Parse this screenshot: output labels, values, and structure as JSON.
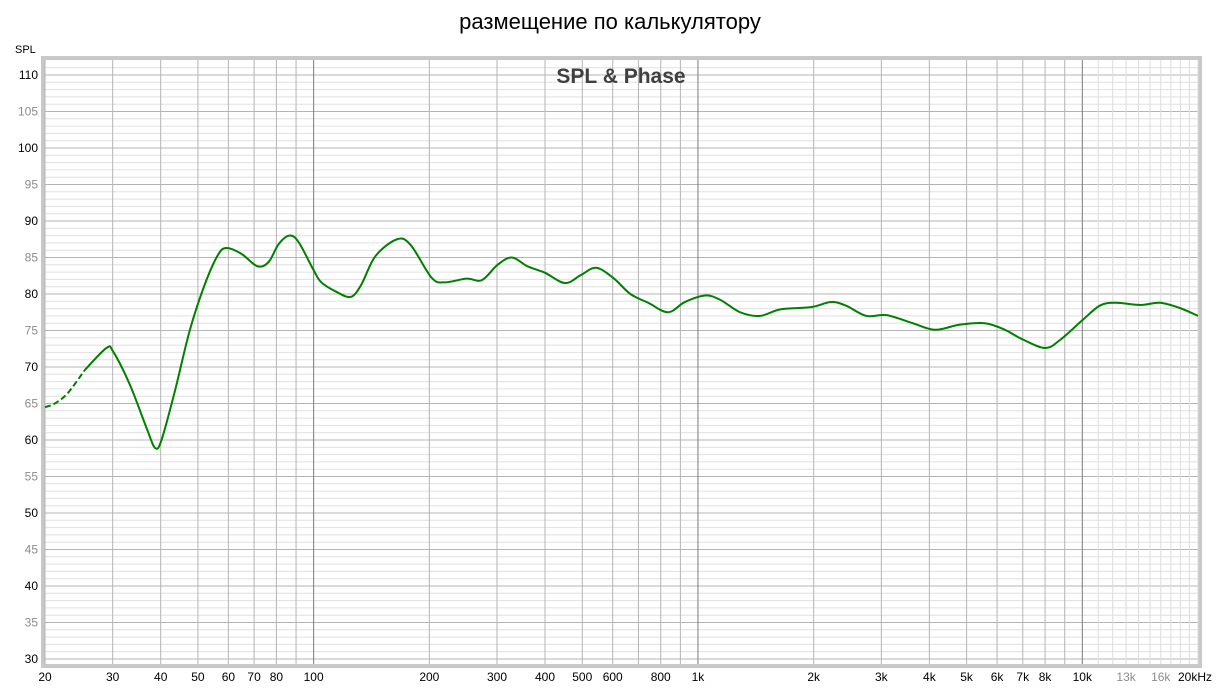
{
  "title": "размещение по калькулятору",
  "chart_data": {
    "type": "line",
    "title": "SPL & Phase",
    "ylabel": "SPL",
    "xlabel": "",
    "xscale": "log",
    "xlim": [
      20,
      20000
    ],
    "ylim": [
      29.3,
      112
    ],
    "grid": true,
    "x_ticks": [
      {
        "v": 20,
        "label": "20",
        "muted": false
      },
      {
        "v": 30,
        "label": "30",
        "muted": false
      },
      {
        "v": 40,
        "label": "40",
        "muted": false
      },
      {
        "v": 50,
        "label": "50",
        "muted": false
      },
      {
        "v": 60,
        "label": "60",
        "muted": false
      },
      {
        "v": 70,
        "label": "70",
        "muted": false
      },
      {
        "v": 80,
        "label": "80",
        "muted": false
      },
      {
        "v": 100,
        "label": "100",
        "muted": false
      },
      {
        "v": 200,
        "label": "200",
        "muted": false
      },
      {
        "v": 300,
        "label": "300",
        "muted": false
      },
      {
        "v": 400,
        "label": "400",
        "muted": false
      },
      {
        "v": 500,
        "label": "500",
        "muted": false
      },
      {
        "v": 600,
        "label": "600",
        "muted": false
      },
      {
        "v": 800,
        "label": "800",
        "muted": false
      },
      {
        "v": 1000,
        "label": "1k",
        "muted": false
      },
      {
        "v": 2000,
        "label": "2k",
        "muted": false
      },
      {
        "v": 3000,
        "label": "3k",
        "muted": false
      },
      {
        "v": 4000,
        "label": "4k",
        "muted": false
      },
      {
        "v": 5000,
        "label": "5k",
        "muted": false
      },
      {
        "v": 6000,
        "label": "6k",
        "muted": false
      },
      {
        "v": 7000,
        "label": "7k",
        "muted": false
      },
      {
        "v": 8000,
        "label": "8k",
        "muted": false
      },
      {
        "v": 10000,
        "label": "10k",
        "muted": false
      },
      {
        "v": 13000,
        "label": "13k",
        "muted": true
      },
      {
        "v": 16000,
        "label": "16k",
        "muted": true
      },
      {
        "v": 20000,
        "label": "20kHz",
        "muted": false
      }
    ],
    "y_ticks": [
      {
        "v": 110,
        "label": "110",
        "muted": false
      },
      {
        "v": 105,
        "label": "105",
        "muted": true
      },
      {
        "v": 100,
        "label": "100",
        "muted": false
      },
      {
        "v": 95,
        "label": "95",
        "muted": true
      },
      {
        "v": 90,
        "label": "90",
        "muted": false
      },
      {
        "v": 85,
        "label": "85",
        "muted": true
      },
      {
        "v": 80,
        "label": "80",
        "muted": false
      },
      {
        "v": 75,
        "label": "75",
        "muted": true
      },
      {
        "v": 70,
        "label": "70",
        "muted": false
      },
      {
        "v": 65,
        "label": "65",
        "muted": true
      },
      {
        "v": 60,
        "label": "60",
        "muted": false
      },
      {
        "v": 55,
        "label": "55",
        "muted": true
      },
      {
        "v": 50,
        "label": "50",
        "muted": false
      },
      {
        "v": 45,
        "label": "45",
        "muted": true
      },
      {
        "v": 40,
        "label": "40",
        "muted": false
      },
      {
        "v": 35,
        "label": "35",
        "muted": true
      },
      {
        "v": 30,
        "label": "30",
        "muted": false
      }
    ],
    "series": [
      {
        "color": "#008000",
        "dashed_below_hz": 23,
        "x": [
          20,
          21.2,
          22.9,
          25.4,
          28.9,
          30.1,
          33.3,
          36.9,
          38.7,
          40.2,
          43.6,
          47.6,
          52,
          56.3,
          59.3,
          64.9,
          71.4,
          76.4,
          81,
          86.4,
          91.4,
          99.9,
          104.7,
          114.6,
          124.9,
          132.8,
          144.9,
          164.9,
          178.9,
          203,
          220,
          250,
          274,
          301,
          328,
          360,
          400,
          451,
          496,
          543,
          602,
          667,
          742,
          836,
          924,
          1044,
          1143,
          1287,
          1451,
          1638,
          1967,
          2220,
          2429,
          2740,
          3100,
          3620,
          4140,
          4800,
          5580,
          6290,
          6980,
          8000,
          8750,
          10000,
          11100,
          12200,
          14200,
          15900,
          17900,
          20000
        ],
        "y": [
          64.5,
          65,
          66.4,
          69.6,
          72.6,
          72.1,
          67.5,
          61.4,
          58.9,
          60,
          66.8,
          75,
          81.2,
          85.3,
          86.3,
          85.5,
          83.8,
          84.4,
          86.8,
          88,
          87.1,
          83.3,
          81.6,
          80.3,
          79.6,
          81.2,
          85.2,
          87.5,
          86.7,
          82.2,
          81.6,
          82.1,
          81.9,
          84,
          85,
          83.8,
          82.9,
          81.5,
          82.6,
          83.6,
          82.2,
          80,
          78.8,
          77.5,
          78.9,
          79.8,
          79.2,
          77.5,
          77,
          77.9,
          78.2,
          78.9,
          78.4,
          77,
          77.1,
          76,
          75.1,
          75.8,
          76,
          75.1,
          73.8,
          72.6,
          73.7,
          76.4,
          78.4,
          78.8,
          78.5,
          78.8,
          78.1,
          77
        ]
      }
    ]
  }
}
